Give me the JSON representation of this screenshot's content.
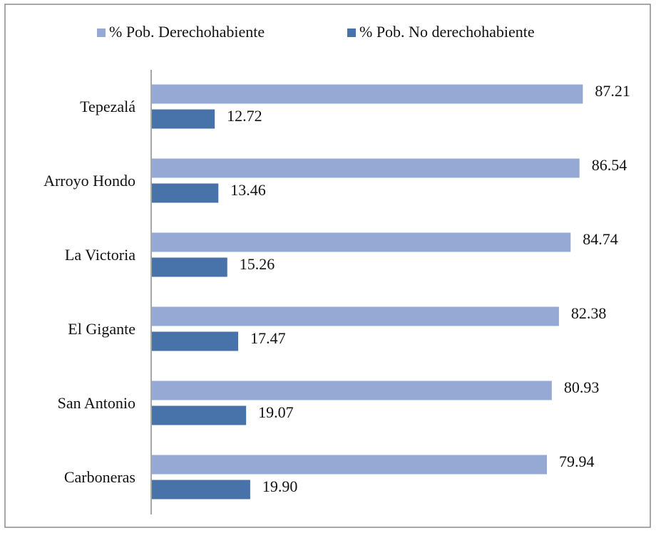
{
  "chart_data": {
    "type": "hbar",
    "categories": [
      "Tepezalá",
      "Arroyo Hondo",
      "La Victoria",
      "El Gigante",
      "San Antonio",
      "Carboneras"
    ],
    "series": [
      {
        "name": "% Pob. Derechohabiente",
        "color": "#95a9d4",
        "values": [
          87.21,
          86.54,
          84.74,
          82.38,
          80.93,
          79.94
        ],
        "value_labels": [
          "87.21",
          "86.54",
          "84.74",
          "82.38",
          "80.93",
          "79.94"
        ]
      },
      {
        "name": "% Pob. No derechohabiente",
        "color": "#4773aa",
        "values": [
          12.72,
          13.46,
          15.26,
          17.47,
          19.07,
          19.9
        ],
        "value_labels": [
          "12.72",
          "13.46",
          "15.26",
          "17.47",
          "19.07",
          "19.90"
        ]
      }
    ],
    "legend": "top"
  }
}
